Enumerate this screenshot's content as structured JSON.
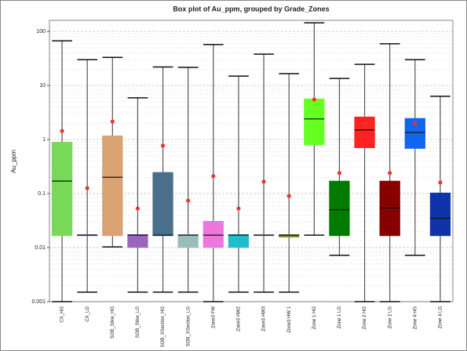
{
  "chart_data": {
    "type": "box",
    "title": "Box plot of Au_ppm, grouped by Grade_Zones",
    "y_label": "Au_ppm",
    "log_scale": true,
    "grid": true,
    "categories": [
      "CX_HG",
      "CX_LG",
      "SOB_Stkw_HG",
      "SOB_Stkw_LG",
      "SOB_XSection_HG",
      "SOB_XSection_LG",
      "Zone3 FW",
      "Zone3 HW2",
      "Zone3 HW3",
      "Zone3 HW 1",
      "Zone 1 HG",
      "Zone 1 LG",
      "Zone 2 HG",
      "Zone 2 LG",
      "Zone 4 HG",
      "Zone 4 LG"
    ],
    "whisker_low": [
      0.001,
      0.0015,
      0.0103,
      0.0015,
      0.0015,
      0.0015,
      0.001,
      0.0015,
      0.0015,
      0.0015,
      0.017,
      0.0072,
      0.001,
      0.001,
      0.0072,
      0.001
    ],
    "q1": [
      0.017,
      0.017,
      0.017,
      0.0103,
      0.017,
      0.0103,
      0.0103,
      0.0103,
      0.017,
      0.016,
      0.82,
      0.017,
      0.72,
      0.017,
      0.7,
      0.017
    ],
    "median": [
      0.17,
      0.017,
      0.2,
      0.017,
      0.017,
      0.017,
      0.017,
      0.017,
      0.017,
      0.017,
      2.4,
      0.05,
      1.5,
      0.054,
      1.35,
      0.035
    ],
    "q3": [
      0.87,
      0.017,
      1.14,
      0.017,
      0.24,
      0.017,
      0.03,
      0.017,
      0.017,
      0.017,
      5.5,
      0.166,
      2.55,
      0.166,
      2.4,
      0.1
    ],
    "whisker_high": [
      67,
      30,
      33,
      5.9,
      22,
      21.6,
      57,
      14.9,
      38,
      16.5,
      144,
      13.5,
      24.6,
      59,
      30,
      6.3
    ],
    "mean": [
      1.44,
      0.126,
      2.15,
      0.053,
      0.77,
      0.074,
      0.21,
      0.053,
      0.166,
      0.09,
      5.5,
      0.24,
      2.0,
      0.24,
      2.0,
      0.16
    ],
    "colors": [
      "#77d957",
      "#9b7fd0",
      "#d9a273",
      "#9966bb",
      "#4a6f8a",
      "#99bcbc",
      "#ee77dd",
      "#22bccc",
      "#aaaaaa",
      "#8c8a33",
      "#66ff22",
      "#007a00",
      "#ff2222",
      "#880000",
      "#1166ee",
      "#1133aa"
    ],
    "mean_color": "#ee3333",
    "ylim": [
      0.001,
      160
    ],
    "yticks": [
      0.001,
      0.01,
      0.1,
      1,
      10,
      100
    ]
  }
}
